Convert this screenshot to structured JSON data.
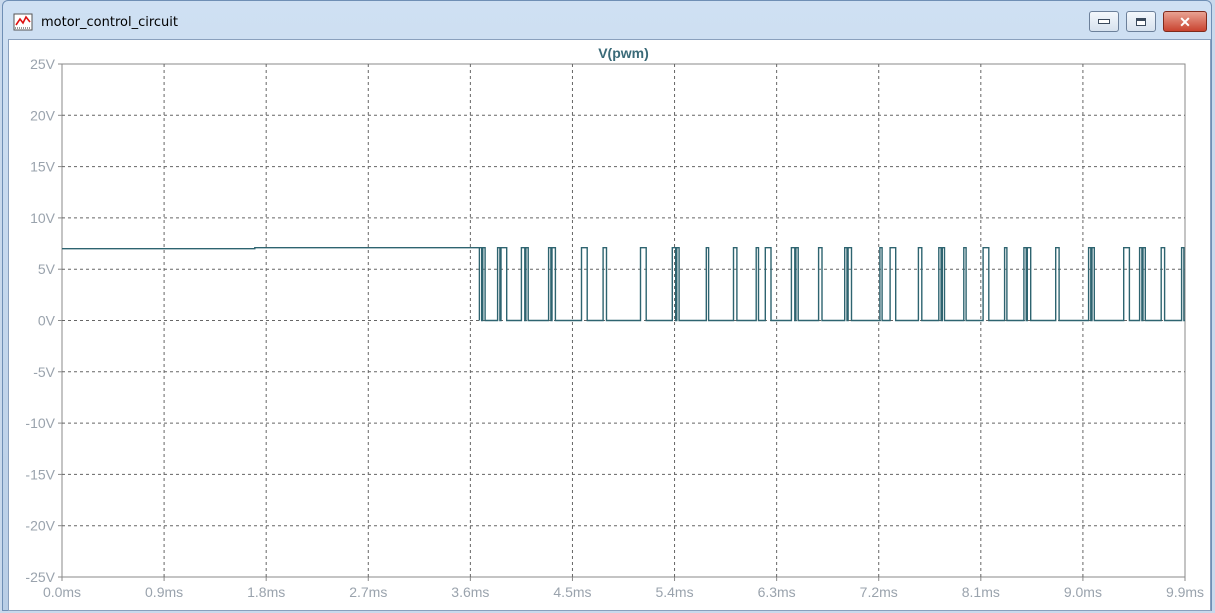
{
  "window": {
    "title": "motor_control_circuit",
    "icon": "waveform-plot-icon",
    "controls": [
      "minimize-icon",
      "maximize-icon",
      "close-icon"
    ]
  },
  "chart_data": {
    "type": "line",
    "title": "V(pwm)",
    "xlabel": "",
    "ylabel": "",
    "xlim": [
      0.0,
      9.9
    ],
    "ylim": [
      -25,
      25
    ],
    "x_ticks": [
      "0.0ms",
      "0.9ms",
      "1.8ms",
      "2.7ms",
      "3.6ms",
      "4.5ms",
      "5.4ms",
      "6.3ms",
      "7.2ms",
      "8.1ms",
      "9.0ms",
      "9.9ms"
    ],
    "y_ticks": [
      "25V",
      "20V",
      "15V",
      "10V",
      "5V",
      "0V",
      "-5V",
      "-10V",
      "-15V",
      "-20V",
      "-25V"
    ],
    "grid": true,
    "line_color": "#2e6470",
    "series": [
      {
        "name": "V(pwm)",
        "pre_pwm": [
          [
            0.0,
            7.0
          ],
          [
            1.7,
            7.0
          ],
          [
            1.7,
            7.1
          ],
          [
            3.68,
            7.1
          ]
        ],
        "high_level": 7.1,
        "low_level": 0.0,
        "pwm_end": 9.9,
        "pulses": [
          [
            3.68,
            3.7
          ],
          [
            3.71,
            3.73
          ],
          [
            3.84,
            3.86
          ],
          [
            3.87,
            3.92
          ],
          [
            4.05,
            4.08
          ],
          [
            4.09,
            4.11
          ],
          [
            4.29,
            4.31
          ],
          [
            4.32,
            4.35
          ],
          [
            4.58,
            4.63
          ],
          [
            4.77,
            4.8
          ],
          [
            5.1,
            5.15
          ],
          [
            5.38,
            5.41
          ],
          [
            5.42,
            5.44
          ],
          [
            5.68,
            5.7
          ],
          [
            5.92,
            5.95
          ],
          [
            6.12,
            6.14
          ],
          [
            6.2,
            6.25
          ],
          [
            6.43,
            6.46
          ],
          [
            6.47,
            6.49
          ],
          [
            6.67,
            6.7
          ],
          [
            6.9,
            6.92
          ],
          [
            6.93,
            6.96
          ],
          [
            7.21,
            7.23
          ],
          [
            7.3,
            7.35
          ],
          [
            7.55,
            7.58
          ],
          [
            7.73,
            7.75
          ],
          [
            7.76,
            7.78
          ],
          [
            7.95,
            7.97
          ],
          [
            8.12,
            8.17
          ],
          [
            8.31,
            8.33
          ],
          [
            8.48,
            8.5
          ],
          [
            8.51,
            8.54
          ],
          [
            8.76,
            8.79
          ],
          [
            9.05,
            9.07
          ],
          [
            9.08,
            9.1
          ],
          [
            9.36,
            9.41
          ],
          [
            9.5,
            9.52
          ],
          [
            9.53,
            9.55
          ],
          [
            9.69,
            9.72
          ],
          [
            9.87,
            9.89
          ]
        ]
      }
    ]
  }
}
